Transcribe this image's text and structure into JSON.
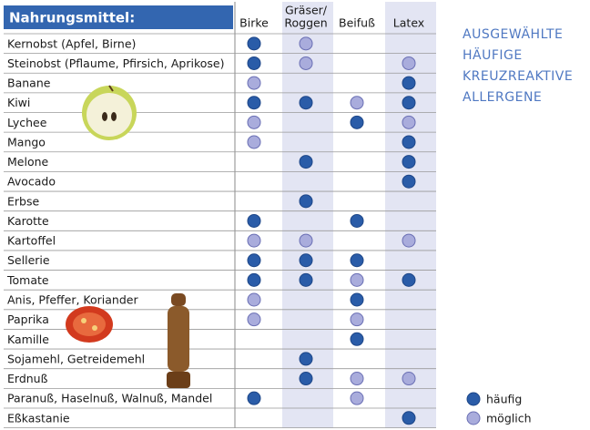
{
  "header": {
    "title": "Nahrungsmittel:",
    "columns": [
      [
        "Birke"
      ],
      [
        "Gräser/",
        "Roggen"
      ],
      [
        "Beifuß"
      ],
      [
        "Latex"
      ]
    ]
  },
  "side_title": [
    "AUSGEWÄHLTE",
    "HÄUFIGE",
    "KREUZREAKTIVE",
    "ALLERGENE"
  ],
  "legend": [
    "häufig",
    "möglich"
  ],
  "table": {
    "rows": [
      [
        "Kernobst (Apfel, Birne)",
        0,
        1,
        null,
        null
      ],
      [
        "Steinobst (Pflaume, Pfirsich, Aprikose)",
        0,
        1,
        null,
        1
      ],
      [
        "Banane",
        1,
        null,
        null,
        0
      ],
      [
        "Kiwi",
        0,
        0,
        1,
        0
      ],
      [
        "Lychee",
        1,
        null,
        0,
        1
      ],
      [
        "Mango",
        1,
        null,
        null,
        0
      ],
      [
        "Melone",
        null,
        0,
        null,
        0
      ],
      [
        "Avocado",
        null,
        null,
        null,
        0
      ],
      [
        "Erbse",
        null,
        0,
        null,
        null
      ],
      [
        "Karotte",
        0,
        null,
        0,
        null
      ],
      [
        "Kartoffel",
        1,
        1,
        null,
        1
      ],
      [
        "Sellerie",
        0,
        0,
        0,
        null
      ],
      [
        "Tomate",
        0,
        0,
        1,
        0
      ],
      [
        "Anis, Pfeffer, Koriander",
        1,
        null,
        0,
        null
      ],
      [
        "Paprika",
        1,
        null,
        1,
        null
      ],
      [
        "Kamille",
        null,
        null,
        0,
        null
      ],
      [
        "Sojamehl, Getreidemehl",
        null,
        0,
        null,
        null
      ],
      [
        "Erdnuß",
        null,
        0,
        1,
        1
      ],
      [
        "Paranuß, Haselnuß, Walnuß, Mandel",
        0,
        null,
        1,
        null
      ],
      [
        "Eßkastanie",
        null,
        null,
        null,
        0
      ]
    ]
  }
}
